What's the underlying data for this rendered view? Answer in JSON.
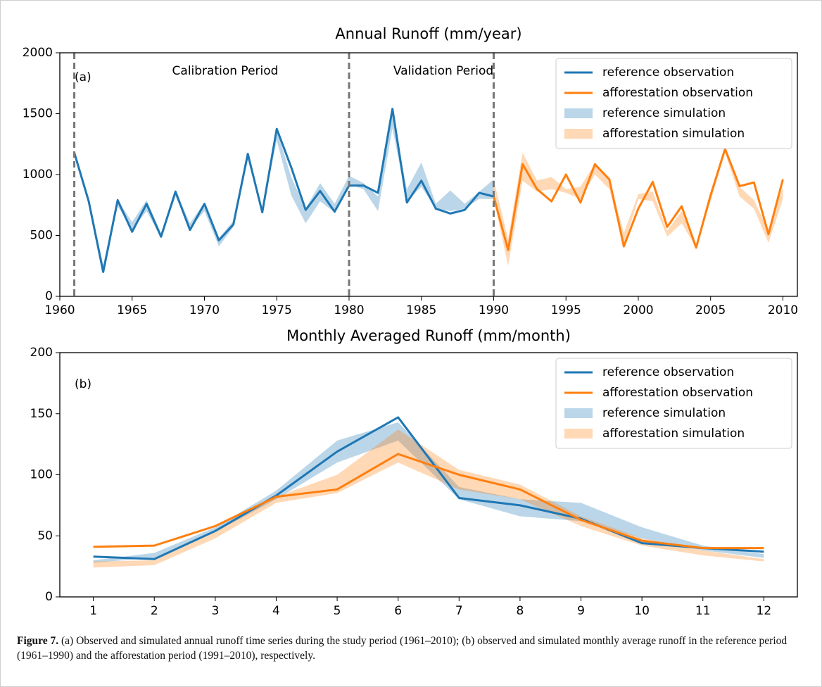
{
  "chart_data": [
    {
      "type": "line",
      "title": "Annual Runoff (mm/year)",
      "annotations": [
        "(a)",
        "Calibration Period",
        "Validation Period"
      ],
      "xlim": [
        1960,
        2011
      ],
      "ylim": [
        0,
        2000
      ],
      "xticks": [
        1960,
        1965,
        1970,
        1975,
        1980,
        1985,
        1990,
        1995,
        2000,
        2005,
        2010
      ],
      "yticks": [
        0,
        500,
        1000,
        1500,
        2000
      ],
      "vlines": [
        1961,
        1980,
        1990
      ],
      "vline_color": "#777777",
      "legend": "upper right",
      "series": [
        {
          "name": "reference observation",
          "color": "#1f77b4",
          "x": [
            1961,
            1962,
            1963,
            1964,
            1965,
            1966,
            1967,
            1968,
            1969,
            1970,
            1971,
            1972,
            1973,
            1974,
            1975,
            1976,
            1977,
            1978,
            1979,
            1980,
            1981,
            1982,
            1983,
            1984,
            1985,
            1986,
            1987,
            1988,
            1989,
            1990
          ],
          "values": [
            1180,
            780,
            200,
            790,
            530,
            760,
            490,
            860,
            545,
            760,
            460,
            590,
            1170,
            690,
            1375,
            1060,
            710,
            865,
            695,
            910,
            910,
            850,
            1540,
            770,
            950,
            720,
            680,
            710,
            850,
            820
          ]
        },
        {
          "name": "afforestation observation",
          "color": "#ff7f0e",
          "x": [
            1990,
            1991,
            1992,
            1993,
            1994,
            1995,
            1996,
            1997,
            1998,
            1999,
            2000,
            2001,
            2002,
            2003,
            2004,
            2005,
            2006,
            2007,
            2008,
            2009,
            2010
          ],
          "values": [
            820,
            380,
            1085,
            880,
            780,
            1000,
            770,
            1085,
            960,
            410,
            720,
            940,
            570,
            740,
            400,
            830,
            1210,
            905,
            935,
            510,
            960
          ]
        },
        {
          "name": "reference simulation",
          "color": "#1f77b4",
          "x": [
            1961,
            1962,
            1963,
            1964,
            1965,
            1966,
            1967,
            1968,
            1969,
            1970,
            1971,
            1972,
            1973,
            1974,
            1975,
            1976,
            1977,
            1978,
            1979,
            1980,
            1981,
            1982,
            1983,
            1984,
            1985,
            1986,
            1987,
            1988,
            1989,
            1990
          ],
          "lower": [
            1180,
            760,
            220,
            740,
            550,
            700,
            480,
            820,
            560,
            700,
            410,
            570,
            1120,
            690,
            1280,
            830,
            600,
            780,
            690,
            920,
            880,
            700,
            1380,
            780,
            900,
            720,
            700,
            720,
            800,
            800
          ],
          "upper": [
            1190,
            800,
            260,
            790,
            610,
            790,
            520,
            870,
            600,
            770,
            480,
            620,
            1180,
            720,
            1370,
            980,
            720,
            930,
            760,
            990,
            930,
            820,
            1500,
            880,
            1100,
            760,
            870,
            760,
            860,
            960
          ]
        },
        {
          "name": "afforestation simulation",
          "color": "#ff7f0e",
          "x": [
            1990,
            1991,
            1992,
            1993,
            1994,
            1995,
            1996,
            1997,
            1998,
            1999,
            2000,
            2001,
            2002,
            2003,
            2004,
            2005,
            2006,
            2007,
            2008,
            2009,
            2010
          ],
          "lower": [
            800,
            250,
            950,
            860,
            880,
            850,
            800,
            1000,
            880,
            420,
            800,
            780,
            490,
            600,
            400,
            780,
            1180,
            820,
            720,
            440,
            800
          ],
          "upper": [
            960,
            470,
            1180,
            950,
            980,
            880,
            900,
            1090,
            960,
            520,
            840,
            860,
            540,
            700,
            430,
            860,
            1210,
            900,
            790,
            540,
            900
          ]
        }
      ]
    },
    {
      "type": "line",
      "title": "Monthly Averaged Runoff (mm/month)",
      "annotations": [
        "(b)"
      ],
      "xlim": [
        0.45,
        12.55
      ],
      "ylim": [
        0,
        200
      ],
      "xticks": [
        1,
        2,
        3,
        4,
        5,
        6,
        7,
        8,
        9,
        10,
        11,
        12
      ],
      "yticks": [
        0,
        50,
        100,
        150,
        200
      ],
      "legend": "upper right",
      "series": [
        {
          "name": "reference observation",
          "color": "#1f77b4",
          "x": [
            1,
            2,
            3,
            4,
            5,
            6,
            7,
            8,
            9,
            10,
            11,
            12
          ],
          "values": [
            33,
            31,
            54,
            83,
            119,
            147,
            81,
            75,
            64,
            44,
            40,
            37
          ]
        },
        {
          "name": "afforestation observation",
          "color": "#ff7f0e",
          "x": [
            1,
            2,
            3,
            4,
            5,
            6,
            7,
            8,
            9,
            10,
            11,
            12
          ],
          "values": [
            41,
            42,
            58,
            82,
            88,
            117,
            100,
            88,
            63,
            46,
            40,
            40
          ]
        },
        {
          "name": "reference simulation",
          "color": "#1f77b4",
          "x": [
            1,
            2,
            3,
            4,
            5,
            6,
            7,
            8,
            9,
            10,
            11,
            12
          ],
          "lower": [
            28,
            32,
            53,
            80,
            110,
            128,
            80,
            66,
            62,
            48,
            38,
            32
          ],
          "upper": [
            30,
            36,
            57,
            87,
            128,
            143,
            90,
            80,
            77,
            57,
            42,
            35
          ]
        },
        {
          "name": "afforestation simulation",
          "color": "#ff7f0e",
          "x": [
            1,
            2,
            3,
            4,
            5,
            6,
            7,
            8,
            9,
            10,
            11,
            12
          ],
          "lower": [
            24,
            26,
            48,
            77,
            85,
            110,
            88,
            80,
            58,
            42,
            34,
            29
          ],
          "upper": [
            29,
            30,
            55,
            82,
            100,
            137,
            104,
            92,
            66,
            48,
            38,
            31
          ]
        }
      ]
    }
  ],
  "caption": {
    "label": "Figure 7.",
    "text": "(a) Observed and simulated annual runoff time series during the study period (1961–2010); (b) observed and simulated monthly average runoff in the reference period (1961–1990) and the afforestation period (1991–2010), respectively."
  }
}
